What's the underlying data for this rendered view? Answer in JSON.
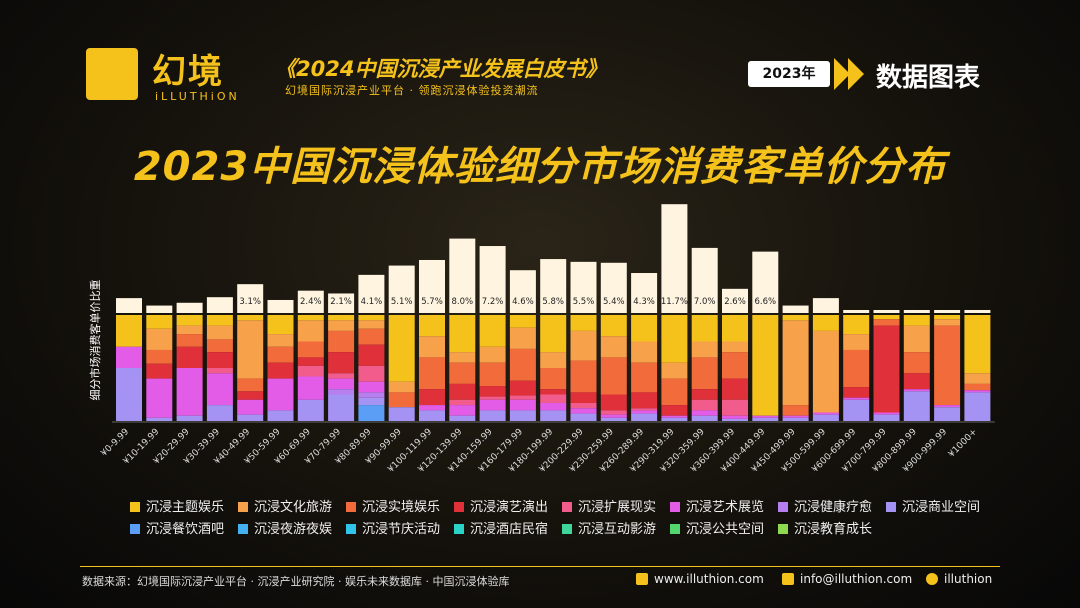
{
  "header": {
    "logo_zh": "幻境",
    "logo_en": "iLLUTHiON",
    "book_title": "《2024中国沉浸产业发展白皮书》",
    "tagline": "幻境国际沉浸产业平台 · 领跑沉浸体验投资潮流",
    "year_badge": "2023年",
    "right_title": "数据图表"
  },
  "colors": {
    "accent": "#f5c21b",
    "segments": [
      "#f5c21b",
      "#f7a14a",
      "#f26b3a",
      "#e0303a",
      "#f25c8c",
      "#e35ce8",
      "#b77ef0",
      "#a493f2",
      "#5a9ef5",
      "#45b0f0",
      "#2fc4e8",
      "#2ad3c6",
      "#3fd69c",
      "#54d66f",
      "#8fd94e"
    ]
  },
  "chart_data": {
    "type": "bar",
    "title": "2023中国沉浸体验细分市场消费客单价分布",
    "ylabel": "细分市场消费客单价比重",
    "categories": [
      "¥0-9.99",
      "¥10-19.99",
      "¥20-29.99",
      "¥30-39.99",
      "¥40-49.99",
      "¥50-59.99",
      "¥60-69.99",
      "¥70-79.99",
      "¥80-89.99",
      "¥90-99.99",
      "¥100-119.99",
      "¥120-139.99",
      "¥140-159.99",
      "¥160-179.99",
      "¥180-199.99",
      "¥200-229.99",
      "¥230-259.99",
      "¥260-289.99",
      "¥290-319.99",
      "¥320-359.99",
      "¥360-399.99",
      "¥400-449.99",
      "¥450-499.99",
      "¥500-599.99",
      "¥600-699.99",
      "¥700-799.99",
      "¥800-899.99",
      "¥900-999.99",
      "¥1000+"
    ],
    "totals": [
      1.6,
      0.8,
      1.1,
      1.7,
      3.1,
      1.4,
      2.4,
      2.1,
      4.1,
      5.1,
      5.7,
      8.0,
      7.2,
      4.6,
      5.8,
      5.5,
      5.4,
      4.3,
      11.7,
      7.0,
      2.6,
      6.6,
      0.8,
      1.6,
      0.3,
      0.3,
      0.3,
      0.1,
      0.3
    ],
    "total_labels": [
      "",
      "",
      "",
      "",
      "3.1%",
      "",
      "2.4%",
      "2.1%",
      "4.1%",
      "5.1%",
      "5.7%",
      "8.0%",
      "7.2%",
      "4.6%",
      "5.8%",
      "5.5%",
      "5.4%",
      "4.3%",
      "11.7%",
      "7.0%",
      "2.6%",
      "6.6%",
      "",
      "",
      "",
      "",
      "",
      "",
      ""
    ],
    "series": [
      {
        "name": "沉浸主题娱乐",
        "values": [
          30,
          13,
          10,
          10,
          5,
          18,
          5,
          5,
          5,
          63,
          20,
          35,
          30,
          12,
          35,
          15,
          20,
          25,
          45,
          25,
          25,
          95,
          5,
          15,
          18,
          4,
          10,
          4,
          55
        ]
      },
      {
        "name": "沉浸文化旅游",
        "values": [
          0,
          20,
          8,
          13,
          55,
          12,
          20,
          10,
          8,
          10,
          20,
          10,
          15,
          20,
          15,
          28,
          20,
          20,
          15,
          15,
          10,
          0,
          80,
          77,
          15,
          0,
          25,
          6,
          10
        ]
      },
      {
        "name": "沉浸实境娱乐",
        "values": [
          0,
          13,
          12,
          12,
          12,
          15,
          15,
          20,
          15,
          14,
          30,
          20,
          22,
          30,
          20,
          30,
          35,
          28,
          25,
          30,
          25,
          0,
          10,
          0,
          35,
          6,
          20,
          75,
          6
        ]
      },
      {
        "name": "沉浸演艺演出",
        "values": [
          0,
          14,
          20,
          15,
          8,
          15,
          8,
          20,
          20,
          0,
          15,
          15,
          10,
          14,
          5,
          10,
          15,
          15,
          10,
          10,
          20,
          0,
          0,
          0,
          10,
          82,
          15,
          0,
          0
        ]
      },
      {
        "name": "沉浸扩展现实",
        "values": [
          0,
          0,
          0,
          5,
          0,
          0,
          10,
          5,
          15,
          0,
          0,
          5,
          3,
          4,
          8,
          5,
          4,
          2,
          0,
          10,
          15,
          0,
          0,
          0,
          0,
          0,
          0,
          0,
          0
        ]
      },
      {
        "name": "沉浸艺术展览",
        "values": [
          20,
          37,
          45,
          30,
          14,
          30,
          22,
          10,
          10,
          0,
          5,
          10,
          10,
          10,
          7,
          5,
          3,
          3,
          2,
          5,
          3,
          2,
          2,
          2,
          2,
          2,
          2,
          2,
          2
        ]
      },
      {
        "name": "沉浸健康疗愈",
        "values": [
          0,
          0,
          0,
          0,
          0,
          0,
          0,
          5,
          5,
          0,
          0,
          0,
          0,
          0,
          0,
          0,
          0,
          0,
          0,
          0,
          0,
          0,
          0,
          0,
          0,
          0,
          0,
          0,
          0
        ]
      },
      {
        "name": "沉浸商业空间",
        "values": [
          50,
          3,
          5,
          15,
          6,
          10,
          20,
          25,
          7,
          13,
          10,
          5,
          10,
          10,
          10,
          7,
          3,
          7,
          3,
          5,
          2,
          3,
          3,
          6,
          20,
          6,
          28,
          13,
          27
        ]
      },
      {
        "name": "沉浸餐饮酒吧",
        "values": [
          0,
          0,
          0,
          0,
          0,
          0,
          0,
          0,
          15,
          0,
          0,
          0,
          0,
          0,
          0,
          0,
          0,
          0,
          0,
          0,
          0,
          0,
          0,
          0,
          0,
          0,
          0,
          0,
          0
        ]
      },
      {
        "name": "沉浸夜游夜娱",
        "values": [
          0,
          0,
          0,
          0,
          0,
          0,
          0,
          0,
          0,
          0,
          0,
          0,
          0,
          0,
          0,
          0,
          0,
          0,
          0,
          0,
          0,
          0,
          0,
          0,
          0,
          0,
          0,
          0,
          0
        ]
      },
      {
        "name": "沉浸节庆活动",
        "values": [
          0,
          0,
          0,
          0,
          0,
          0,
          0,
          0,
          0,
          0,
          0,
          0,
          0,
          0,
          0,
          0,
          0,
          0,
          0,
          0,
          0,
          0,
          0,
          0,
          0,
          0,
          0,
          0,
          0
        ]
      },
      {
        "name": "沉浸酒店民宿",
        "values": [
          0,
          0,
          0,
          0,
          0,
          0,
          0,
          0,
          0,
          0,
          0,
          0,
          0,
          0,
          0,
          0,
          0,
          0,
          0,
          0,
          0,
          0,
          0,
          0,
          0,
          0,
          0,
          0,
          0
        ]
      },
      {
        "name": "沉浸互动影游",
        "values": [
          0,
          0,
          0,
          0,
          0,
          0,
          0,
          0,
          0,
          0,
          0,
          0,
          0,
          0,
          0,
          0,
          0,
          0,
          0,
          0,
          0,
          0,
          0,
          0,
          0,
          0,
          0,
          0,
          0
        ]
      },
      {
        "name": "沉浸公共空间",
        "values": [
          0,
          0,
          0,
          0,
          0,
          0,
          0,
          0,
          0,
          0,
          0,
          0,
          0,
          0,
          0,
          0,
          0,
          0,
          0,
          0,
          0,
          0,
          0,
          0,
          0,
          0,
          0,
          0,
          0
        ]
      },
      {
        "name": "沉浸教育成长",
        "values": [
          0,
          0,
          0,
          0,
          0,
          0,
          0,
          0,
          0,
          0,
          0,
          0,
          0,
          0,
          0,
          0,
          0,
          0,
          0,
          0,
          0,
          0,
          0,
          0,
          0,
          0,
          0,
          0,
          0
        ]
      }
    ],
    "legend_position": "bottom"
  },
  "footer": {
    "source": "数据来源：幻境国际沉浸产业平台 · 沉浸产业研究院 · 娱乐未来数据库 · 中国沉浸体验库",
    "website": "www.illuthion.com",
    "email": "info@illuthion.com",
    "wechat": "illuthion"
  }
}
